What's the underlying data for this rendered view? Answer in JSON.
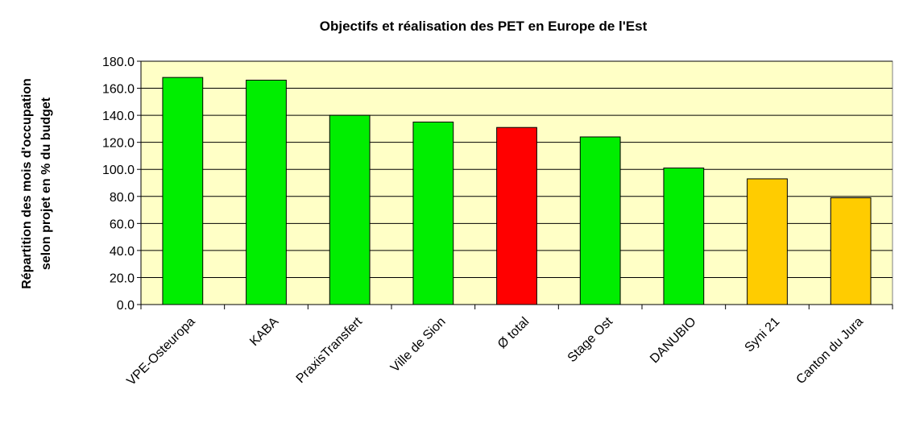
{
  "chart_data": {
    "type": "bar",
    "title": "Objectifs et réalisation des PET en Europe de l'Est",
    "ylabel": [
      "Répartition des mois d'occupation",
      "selon projet en % du budget"
    ],
    "categories": [
      "VPE-Osteuropa",
      "KABA",
      "PraxisTransfert",
      "Ville de Sion",
      "Ø total",
      "Stage Ost",
      "DANUBIO",
      "Syni 21",
      "Canton du Jura"
    ],
    "values": [
      168,
      166,
      140,
      135,
      131,
      124,
      101,
      93,
      79
    ],
    "colors": [
      "#00ee00",
      "#00ee00",
      "#00ee00",
      "#00ee00",
      "#ff0000",
      "#00ee00",
      "#00ee00",
      "#ffcc00",
      "#ffcc00"
    ],
    "ylim": [
      0,
      180
    ],
    "yticks": [
      {
        "value": 0,
        "label": "0.0"
      },
      {
        "value": 20,
        "label": "20.0"
      },
      {
        "value": 40,
        "label": "40.0"
      },
      {
        "value": 60,
        "label": "60.0"
      },
      {
        "value": 80,
        "label": "80.0"
      },
      {
        "value": 100,
        "label": "100.0"
      },
      {
        "value": 120,
        "label": "120.0"
      },
      {
        "value": 140,
        "label": "140.0"
      },
      {
        "value": 160,
        "label": "160.0"
      },
      {
        "value": 180,
        "label": "180.0"
      }
    ],
    "grid": true
  }
}
